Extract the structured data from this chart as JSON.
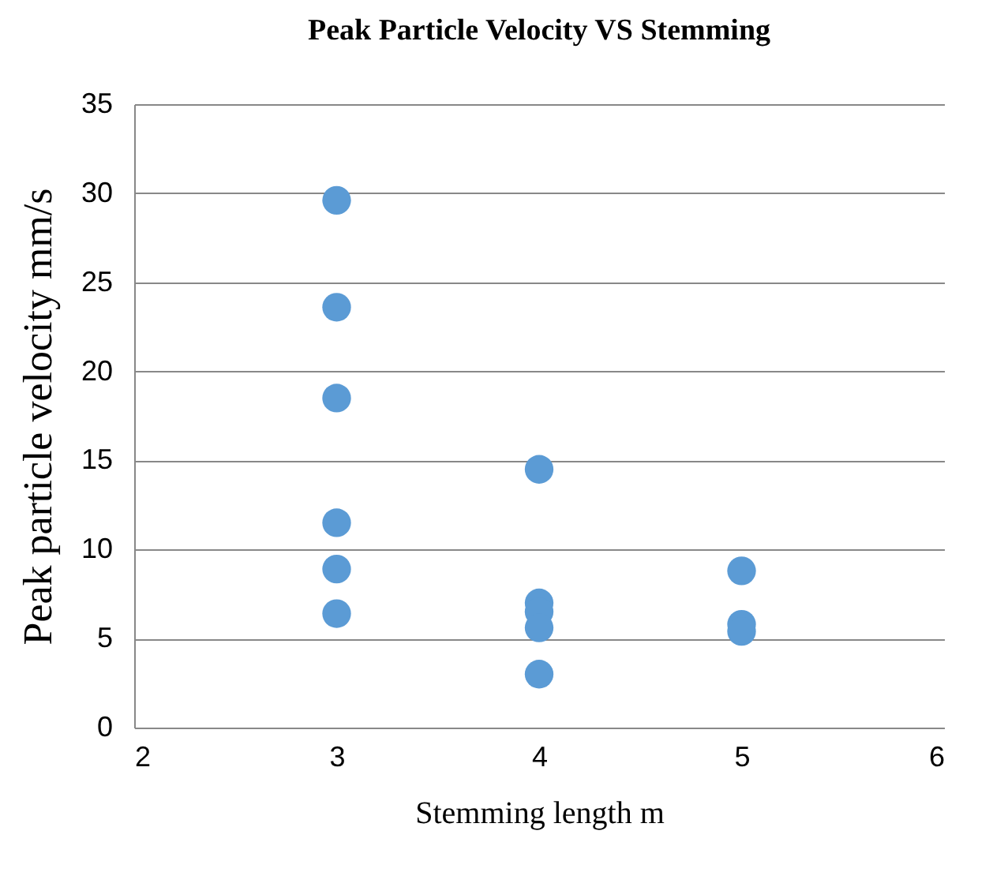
{
  "chart_data": {
    "type": "scatter",
    "title": "Peak Particle Velocity VS Stemming",
    "xlabel": "Stemming length  m",
    "ylabel": "Peak particle velocity mm/s",
    "x": [
      3,
      3,
      3,
      3,
      3,
      3,
      4,
      4,
      4,
      4,
      4,
      5,
      5,
      5
    ],
    "series": [
      {
        "color": "#5b9bd5",
        "values": [
          29.6,
          23.6,
          18.5,
          11.5,
          8.9,
          6.4,
          14.5,
          7.0,
          6.5,
          5.6,
          3.0,
          8.8,
          5.8,
          5.4
        ]
      }
    ],
    "xlim": [
      2,
      6
    ],
    "xticks": [
      2,
      3,
      4,
      5,
      6
    ],
    "ylim": [
      0,
      35
    ],
    "yticks": [
      0,
      5,
      10,
      15,
      20,
      25,
      30,
      35
    ],
    "grid": "y",
    "marker": "circle",
    "legend": false
  }
}
